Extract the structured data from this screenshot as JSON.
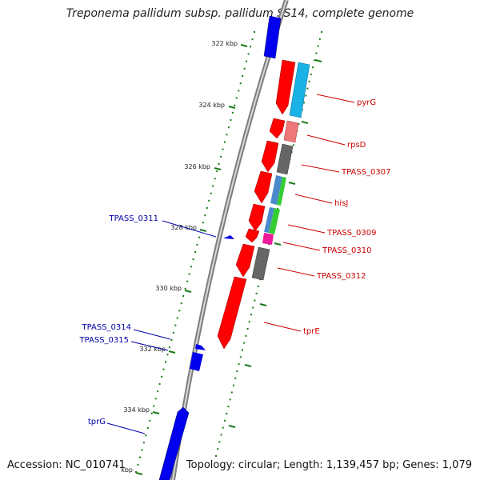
{
  "title": "Treponema pallidum subsp. pallidum SS14, complete genome",
  "footer": {
    "accession": "Accession: NC_010741",
    "topology": "Topology: circular; Length: 1,139,457 bp; Genes: 1,079"
  },
  "ticks": [
    {
      "label": "322 kbp"
    },
    {
      "label": "324 kbp"
    },
    {
      "label": "326 kbp"
    },
    {
      "label": "328 kbp"
    },
    {
      "label": "330 kbp"
    },
    {
      "label": "332 kbp"
    },
    {
      "label": "334 kbp"
    },
    {
      "label": "kbp"
    }
  ],
  "gene_labels_forward": [
    "pyrG",
    "rpsD",
    "TPASS_0307",
    "hisJ",
    "TPASS_0309",
    "TPASS_0310",
    "TPASS_0312",
    "tprE"
  ],
  "gene_labels_reverse": [
    "TPASS_0311",
    "TPASS_0314",
    "TPASS_0315",
    "tprG"
  ],
  "colors": {
    "forward_strand": "#ff0000",
    "reverse_strand": "#0000ee",
    "forward_label": "#cc0000",
    "reverse_label": "#0000aa",
    "backbone": "#8c8c8c",
    "tick": "#1a7a1a",
    "cog_blue": "#1ab2e6",
    "cog_pink": "#ee7777",
    "cog_gray": "#666666",
    "cog_teal": "#4a8acc",
    "cog_green": "#33cc33",
    "cog_magenta": "#ee1a99"
  }
}
